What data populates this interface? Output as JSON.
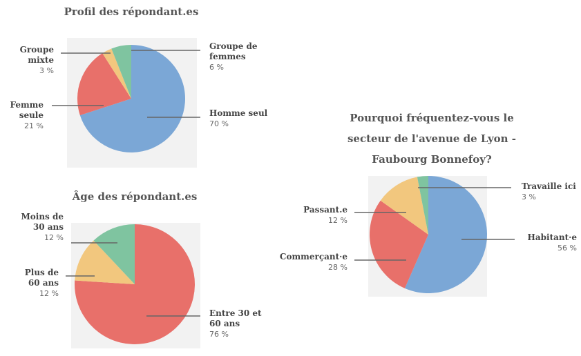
{
  "chart_data": [
    {
      "type": "pie",
      "title": "Profil des répondant.es",
      "categories": [
        "Homme seul",
        "Femme seule",
        "Groupe mixte",
        "Groupe de femmes"
      ],
      "values": [
        70,
        21,
        3,
        6
      ],
      "value_labels": [
        "70 %",
        "21 %",
        "3 %",
        "6 %"
      ],
      "colors": [
        "#7ba7d6",
        "#e8706a",
        "#f2c77e",
        "#7fc4a0"
      ]
    },
    {
      "type": "pie",
      "title": "Âge des répondant.es",
      "categories": [
        "Entre 30 et 60 ans",
        "Plus de 60 ans",
        "Moins de 30 ans"
      ],
      "values": [
        76,
        12,
        12
      ],
      "value_labels": [
        "76 %",
        "12 %",
        "12 %"
      ],
      "colors": [
        "#e8706a",
        "#f2c77e",
        "#7fc4a0"
      ]
    },
    {
      "type": "pie",
      "title": "Pourquoi fréquentez-vous le secteur de l'avenue de Lyon - Faubourg Bonnefoy?",
      "categories": [
        "Habitant·e",
        "Commerçant·e",
        "Passant.e",
        "Travaille ici"
      ],
      "values": [
        56,
        28,
        12,
        3
      ],
      "value_labels": [
        "56 %",
        "28 %",
        "12 %",
        "3 %"
      ],
      "colors": [
        "#7ba7d6",
        "#e8706a",
        "#f2c77e",
        "#7fc4a0"
      ]
    }
  ]
}
